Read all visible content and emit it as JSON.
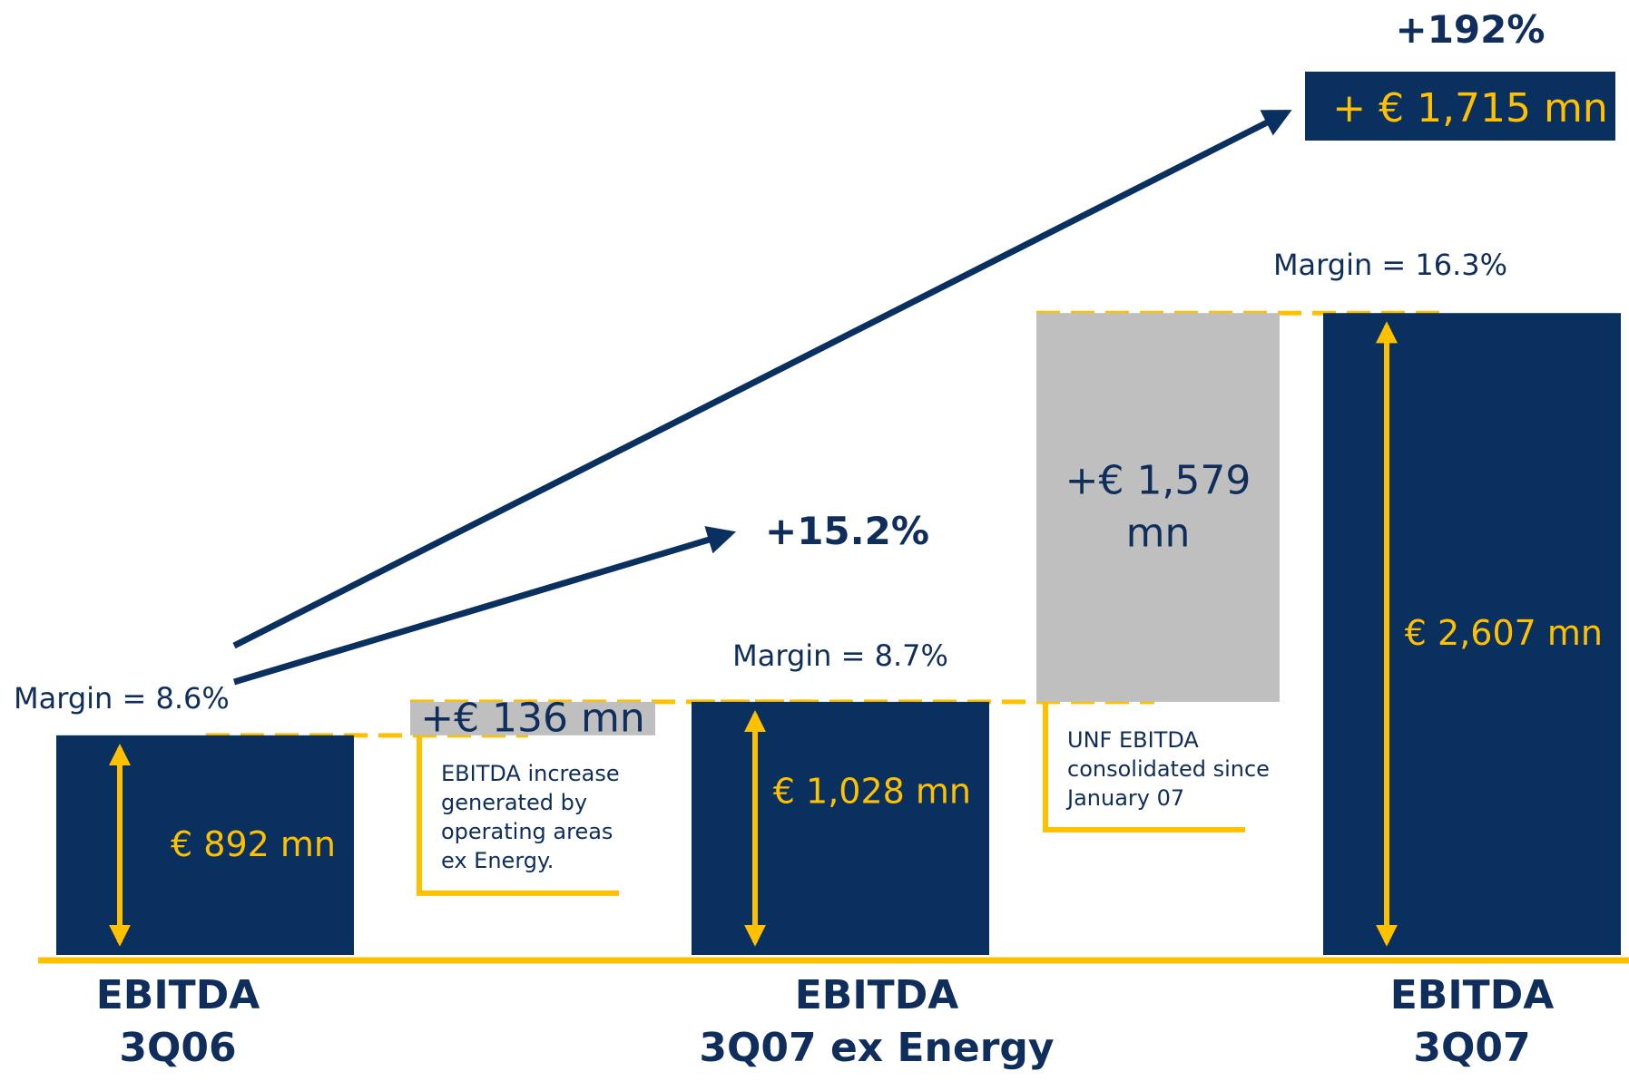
{
  "chart_data": {
    "type": "bar",
    "subtype": "waterfall",
    "colors": {
      "navy": "#0a3060",
      "gray": "#bfbfbf",
      "gold": "#ffc000",
      "text": "#0f2e5c"
    },
    "steps": [
      {
        "kind": "total",
        "name_lines": [
          "EBITDA",
          "3Q06"
        ],
        "value": 892,
        "label": "€ 892 mn",
        "margin": "Margin = 8.6%"
      },
      {
        "kind": "delta",
        "value": 136,
        "label_lines": [
          "+€ 136 mn"
        ],
        "note_lines": [
          "EBITDA increase",
          "generated by",
          "operating areas",
          "ex Energy."
        ]
      },
      {
        "kind": "total",
        "name_lines": [
          "EBITDA",
          "3Q07 ex Energy"
        ],
        "value": 1028,
        "label": "€ 1,028 mn",
        "margin": "Margin = 8.7%"
      },
      {
        "kind": "delta",
        "value": 1579,
        "label_lines": [
          "+€ 1,579",
          "mn"
        ],
        "note_lines": [
          "UNF EBITDA",
          "consolidated since",
          "January 07"
        ]
      },
      {
        "kind": "total",
        "name_lines": [
          "EBITDA",
          "3Q07"
        ],
        "value": 2607,
        "label": "€ 2,607 mn",
        "margin": "Margin = 16.3%"
      }
    ],
    "growth": [
      {
        "from": 0,
        "to": 2,
        "label": "+15.2%"
      },
      {
        "from": 0,
        "to": 4,
        "label": "+192%",
        "delta_box": "+ € 1,715 mn"
      }
    ]
  }
}
